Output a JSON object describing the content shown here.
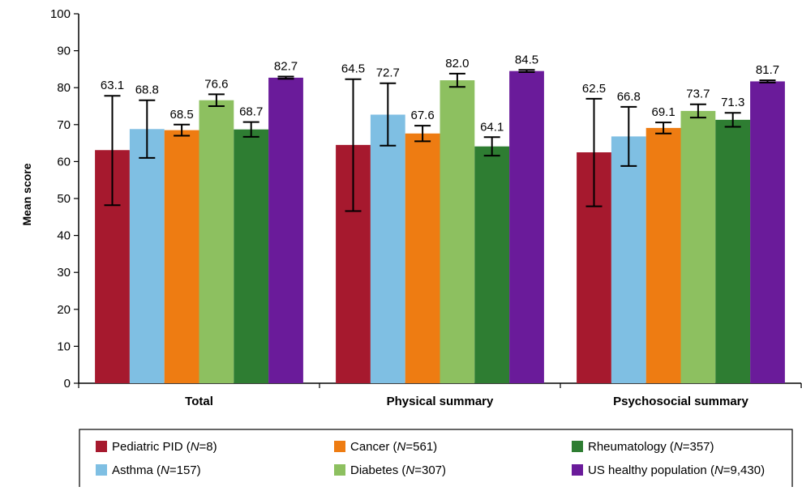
{
  "chart_data": {
    "type": "bar",
    "title": "",
    "xlabel": "",
    "ylabel": "Mean score",
    "ylim": [
      0,
      100
    ],
    "yticks": [
      0,
      10,
      20,
      30,
      40,
      50,
      60,
      70,
      80,
      90,
      100
    ],
    "grid": false,
    "legend_position": "bottom",
    "categories": [
      "Total",
      "Physical summary",
      "Psychosocial summary"
    ],
    "series": [
      {
        "name": "Pediatric PID (N=8)",
        "legend_parts": [
          "Pediatric PID (",
          "N",
          "=8)"
        ],
        "color": "#A6192E",
        "values": [
          63.1,
          64.5,
          62.5
        ],
        "error_low": [
          48.2,
          46.6,
          47.9
        ],
        "error_high": [
          77.8,
          82.3,
          77.0
        ]
      },
      {
        "name": "Asthma (N=157)",
        "legend_parts": [
          "Asthma  (",
          "N",
          "=157)"
        ],
        "color": "#7FBFE3",
        "values": [
          68.8,
          72.7,
          66.8
        ],
        "error_low": [
          61.0,
          64.3,
          58.8
        ],
        "error_high": [
          76.6,
          81.2,
          74.8
        ]
      },
      {
        "name": "Cancer (N=561)",
        "legend_parts": [
          "Cancer (",
          "N",
          "=561)"
        ],
        "color": "#EE7C12",
        "values": [
          68.5,
          67.6,
          69.1
        ],
        "error_low": [
          67.0,
          65.5,
          67.6
        ],
        "error_high": [
          70.0,
          69.7,
          70.6
        ]
      },
      {
        "name": "Diabetes (N=307)",
        "legend_parts": [
          "Diabetes (",
          "N",
          "=307)"
        ],
        "color": "#8DC060",
        "values": [
          76.6,
          82.0,
          73.7
        ],
        "error_low": [
          75.0,
          80.2,
          71.9
        ],
        "error_high": [
          78.2,
          83.8,
          75.5
        ]
      },
      {
        "name": "Rheumatology (N=357)",
        "legend_parts": [
          "Rheumatology (",
          "N",
          "=357)"
        ],
        "color": "#2E7D32",
        "values": [
          68.7,
          64.1,
          71.3
        ],
        "error_low": [
          66.7,
          61.6,
          69.4
        ],
        "error_high": [
          70.7,
          66.6,
          73.2
        ]
      },
      {
        "name": "US healthy population (N=9,430)",
        "legend_parts": [
          "US healthy population (",
          "N",
          "=9,430)"
        ],
        "color": "#6A1B9A",
        "values": [
          82.7,
          84.5,
          81.7
        ],
        "error_low": [
          82.4,
          84.2,
          81.4
        ],
        "error_high": [
          83.0,
          84.8,
          82.0
        ]
      }
    ]
  }
}
